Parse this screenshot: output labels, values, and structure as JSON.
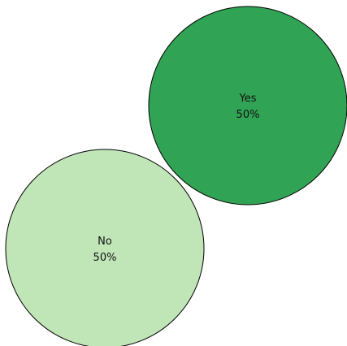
{
  "chart_data": {
    "type": "bubble",
    "title": "",
    "legend": "none",
    "series": [
      {
        "category": "Yes",
        "percent": 50,
        "value_label": "50%",
        "color": "#31a354"
      },
      {
        "category": "No",
        "percent": 50,
        "value_label": "50%",
        "color": "#c0e6b8"
      }
    ],
    "stroke_color": "#000000"
  }
}
